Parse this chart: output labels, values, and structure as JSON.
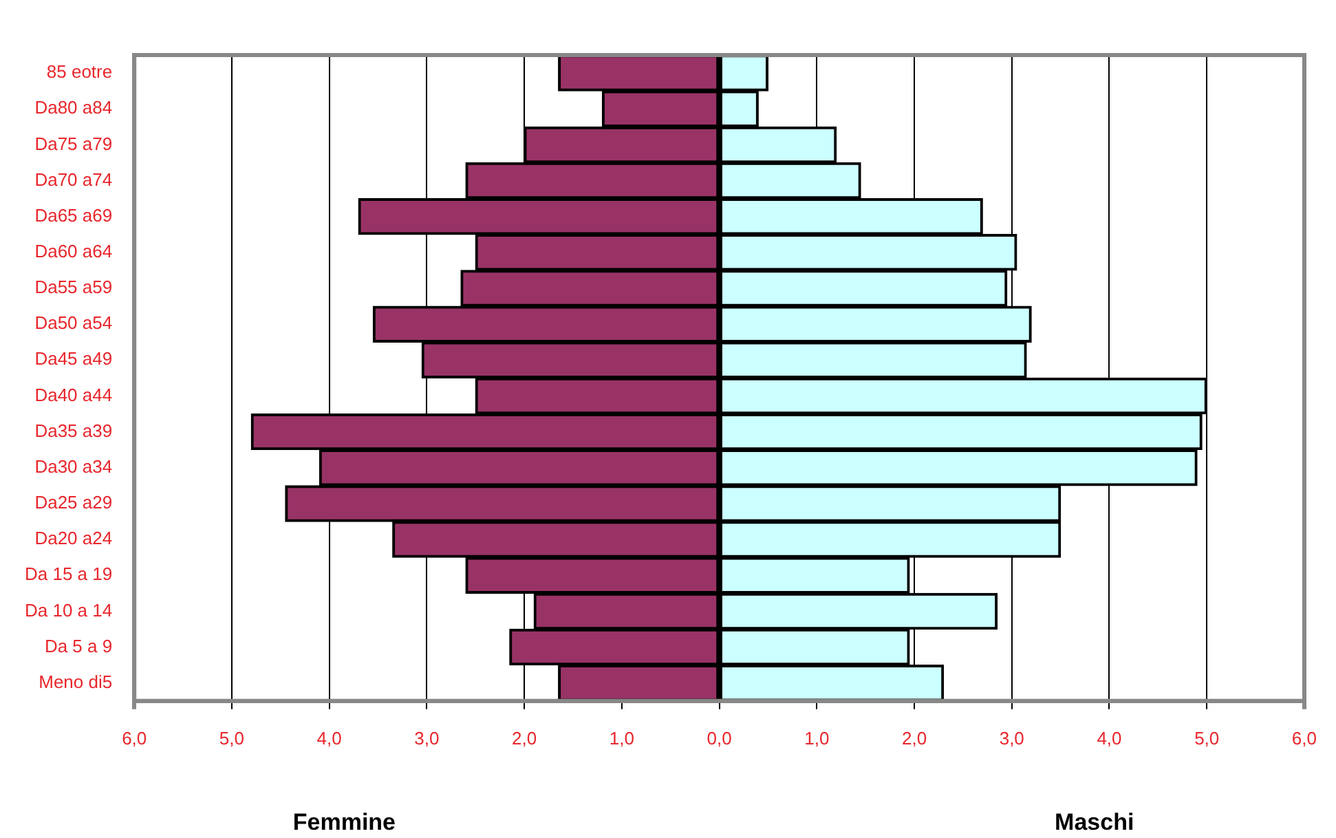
{
  "chart_data": {
    "type": "bar",
    "orientation": "horizontal",
    "categories": [
      "85 eotre",
      "Da80 a84",
      "Da75 a79",
      "Da70 a74",
      "Da65 a69",
      "Da60 a64",
      "Da55 a59",
      "Da50 a54",
      "Da45 a49",
      "Da40 a44",
      "Da35 a39",
      "Da30 a34",
      "Da25 a29",
      "Da20 a24",
      "Da 15 a 19",
      "Da 10 a 14",
      "Da 5 a 9",
      "Meno di5"
    ],
    "series": [
      {
        "color": "#993366",
        "values": [
          -1.65,
          -1.2,
          -2.0,
          -2.6,
          -3.7,
          -2.5,
          -2.65,
          -3.55,
          -3.05,
          -2.5,
          -4.8,
          -4.1,
          -4.45,
          -3.35,
          -2.6,
          -1.9,
          -2.15,
          -1.65
        ]
      },
      {
        "color": "#ccffff",
        "values": [
          0.5,
          0.4,
          1.2,
          1.45,
          2.7,
          3.05,
          2.95,
          3.2,
          3.15,
          5.0,
          4.95,
          4.9,
          3.5,
          3.5,
          1.95,
          2.85,
          1.95,
          2.3
        ]
      }
    ],
    "xlim": [
      -6,
      6
    ],
    "xticks": [
      {
        "value": -6,
        "label": "6,0"
      },
      {
        "value": -5,
        "label": "5,0"
      },
      {
        "value": -4,
        "label": "4,0"
      },
      {
        "value": -3,
        "label": "3,0"
      },
      {
        "value": -2,
        "label": "2,0"
      },
      {
        "value": -1,
        "label": "1,0"
      },
      {
        "value": 0,
        "label": "0,0"
      },
      {
        "value": 1,
        "label": "1,0"
      },
      {
        "value": 2,
        "label": "2,0"
      },
      {
        "value": 3,
        "label": "3,0"
      },
      {
        "value": 4,
        "label": "4,0"
      },
      {
        "value": 5,
        "label": "5,0"
      },
      {
        "value": 6,
        "label": "6,0"
      }
    ],
    "annotations": [
      "Femmine",
      "Maschi"
    ],
    "stacked": true,
    "grid": "x",
    "legend": false
  }
}
